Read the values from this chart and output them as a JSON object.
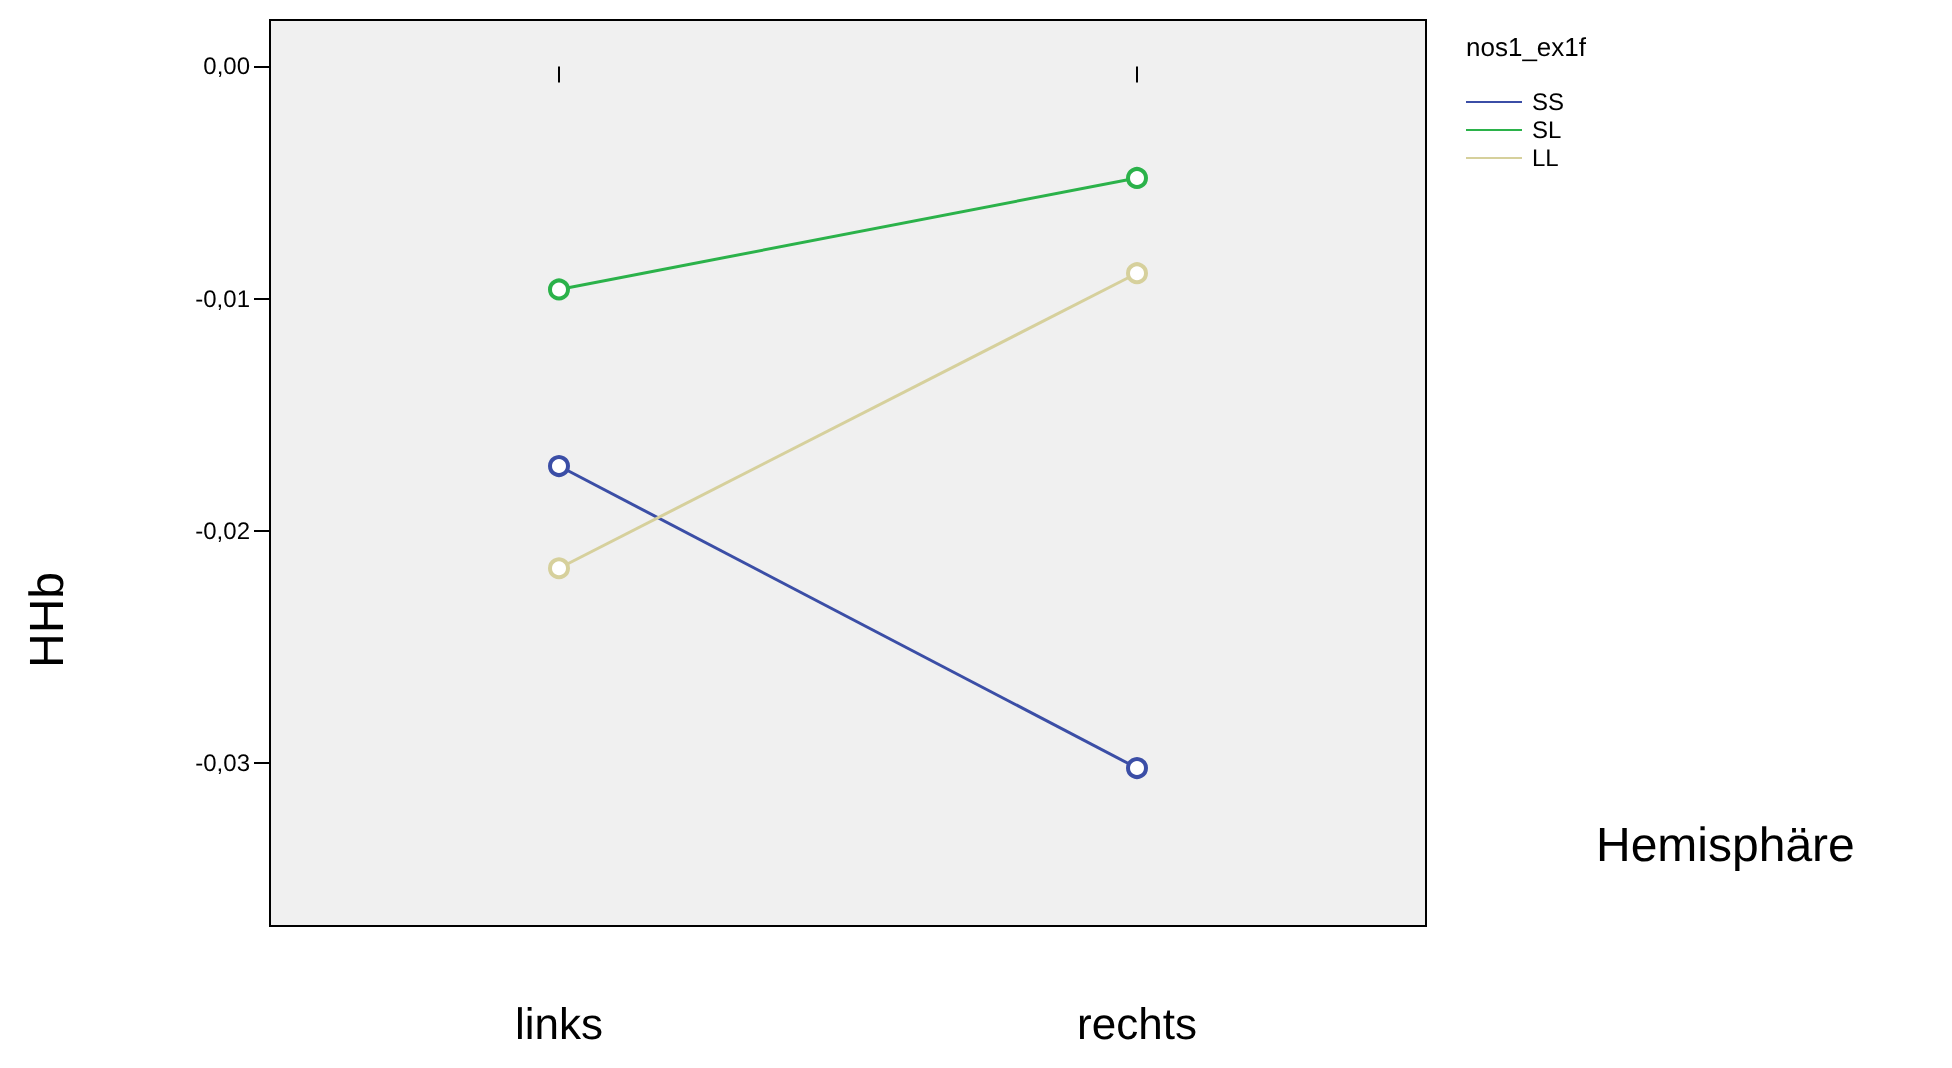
{
  "chart_data": {
    "type": "line",
    "xlabel": "Hemisphäre",
    "ylabel": "HHb",
    "legend_title": "nos1_ex1f",
    "categories": [
      "links",
      "rechts"
    ],
    "series": [
      {
        "name": "SS",
        "color": "#3b4ea6",
        "values": [
          -0.0172,
          -0.0302
        ]
      },
      {
        "name": "SL",
        "color": "#2bb24a",
        "values": [
          -0.0096,
          -0.0048
        ]
      },
      {
        "name": "LL",
        "color": "#d6d09c",
        "values": [
          -0.0216,
          -0.0089
        ]
      }
    ],
    "ylim": [
      -0.037,
      0.002
    ],
    "yticks": [
      {
        "value": 0,
        "label": "0,00"
      },
      {
        "value": -0.01,
        "label": "-0,01"
      },
      {
        "value": -0.02,
        "label": "-0,02"
      },
      {
        "value": -0.03,
        "label": "-0,03"
      }
    ],
    "grid": false,
    "legend": "top right",
    "marker": "circle",
    "line_style": "solid"
  }
}
